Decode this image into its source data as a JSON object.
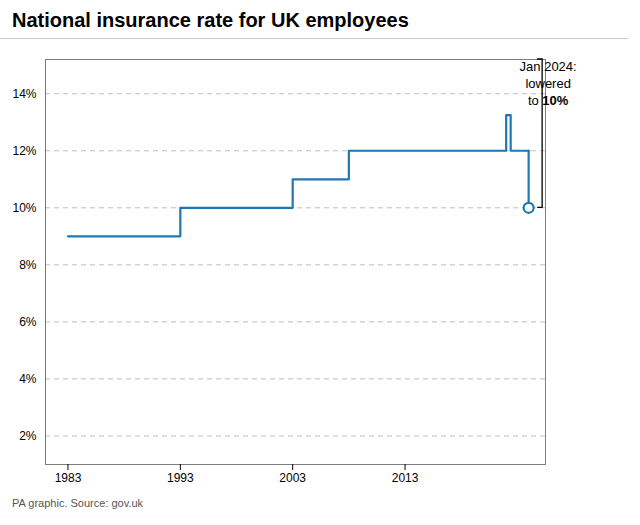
{
  "chart_data": {
    "type": "line",
    "title": "National insurance rate for UK employees",
    "source": "PA graphic. Source: gov.uk",
    "series": [
      {
        "type": "line",
        "color": "#1f78b4",
        "x": [
          1983,
          1993,
          1993,
          2003,
          2003,
          2008,
          2008,
          2011,
          2011,
          2022.0,
          2022.0,
          2022.4,
          2022.4,
          2023.0,
          2023.0,
          2024.0
        ],
        "values": [
          9,
          9,
          10,
          10,
          11,
          11,
          12,
          12,
          12,
          12,
          13.25,
          13.25,
          12,
          12,
          12,
          12
        ]
      },
      {
        "type": "line",
        "color": "#1f78b4",
        "x": [
          2024.0,
          2024.0
        ],
        "values": [
          12,
          10
        ]
      },
      {
        "type": "scatter",
        "marker": "circle-open",
        "color": "#1f78b4",
        "x": [
          2024.0
        ],
        "values": [
          10
        ]
      }
    ],
    "xlim": [
      1981,
      2025.5
    ],
    "xticks": [
      1983,
      1993,
      2003,
      2013
    ],
    "ylim": [
      1,
      15.2
    ],
    "yticks": [
      {
        "value": 2,
        "label": "2%"
      },
      {
        "value": 4,
        "label": "4%"
      },
      {
        "value": 6,
        "label": "6%"
      },
      {
        "value": 8,
        "label": "8%"
      },
      {
        "value": 10,
        "label": "10%"
      },
      {
        "value": 12,
        "label": "12%"
      },
      {
        "value": 14,
        "label": "14%"
      }
    ],
    "grid": true,
    "annotations": [
      {
        "x": 2024.0,
        "y": 10,
        "lines": [
          "Jan 2024:",
          "lowered",
          "to 10%"
        ],
        "bold": "10%"
      }
    ]
  }
}
